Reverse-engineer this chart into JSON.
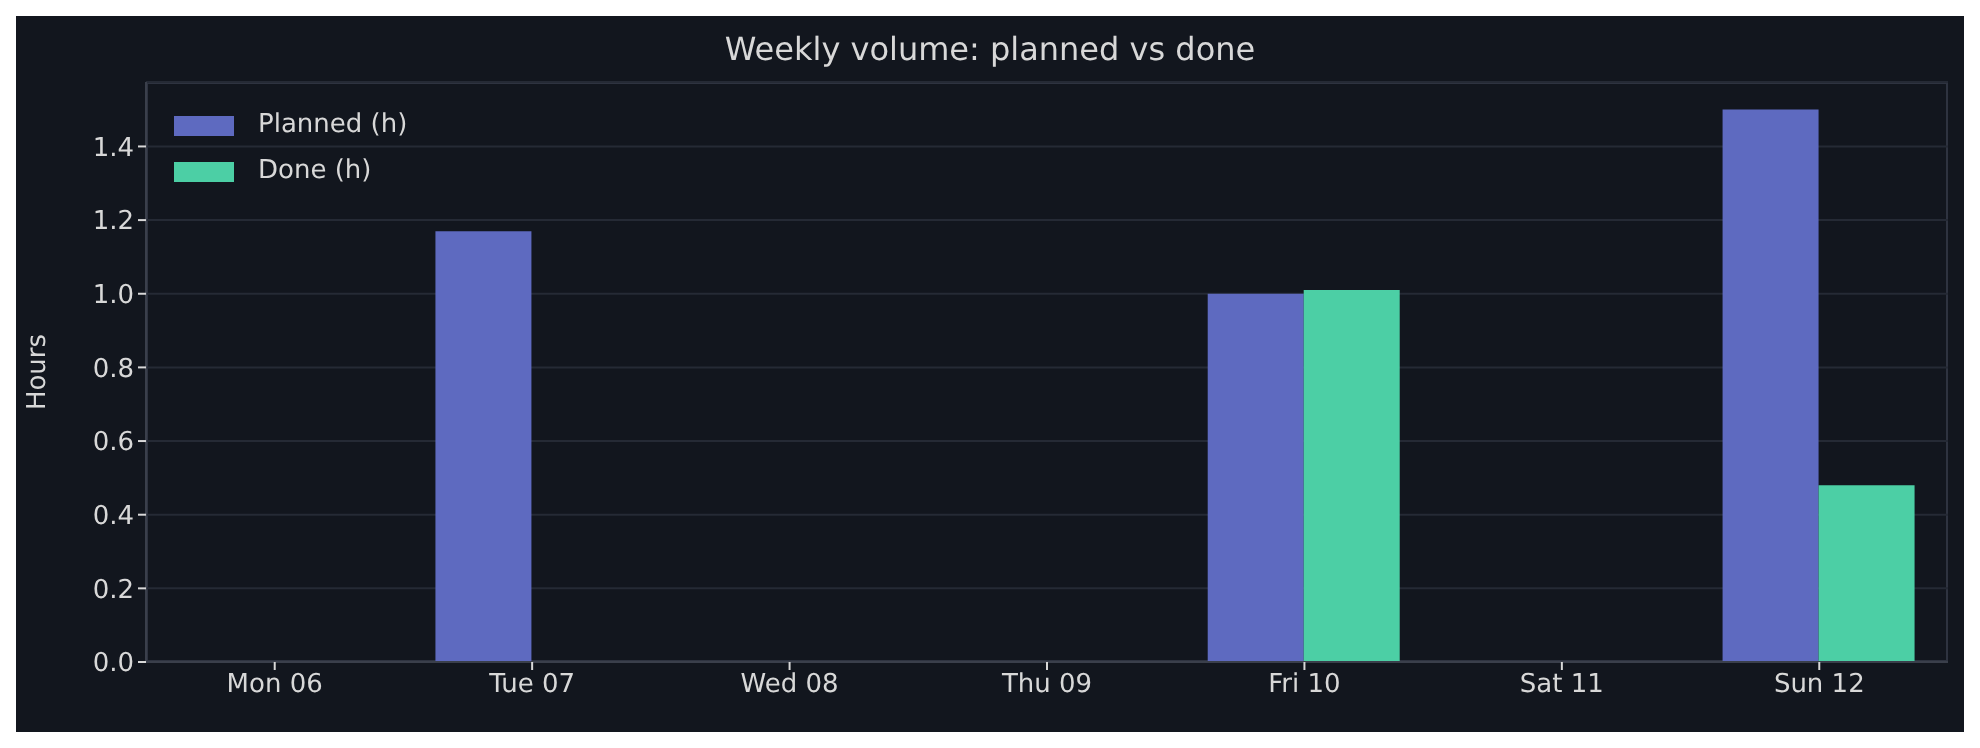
{
  "chart_data": {
    "type": "bar",
    "title": "Weekly volume: planned vs done",
    "ylabel": "Hours",
    "categories": [
      "Mon 06",
      "Tue 07",
      "Wed 08",
      "Thu 09",
      "Fri 10",
      "Sat 11",
      "Sun 12"
    ],
    "series": [
      {
        "name": "Planned (h)",
        "color": "#5e6ac0",
        "values": [
          0,
          1.17,
          0,
          0,
          1.0,
          0,
          1.5
        ]
      },
      {
        "name": "Done (h)",
        "color": "#4ccfa5",
        "values": [
          0,
          0,
          0,
          0,
          1.01,
          0,
          0.48
        ]
      }
    ],
    "ylim": [
      0,
      1.575
    ],
    "yticks": [
      {
        "value": 0,
        "label": "0.0"
      },
      0.2,
      0.4,
      0.6,
      0.8,
      {
        "value": 1,
        "label": "1.0"
      },
      1.2,
      1.4
    ],
    "grid": "y",
    "legend": "top left"
  }
}
